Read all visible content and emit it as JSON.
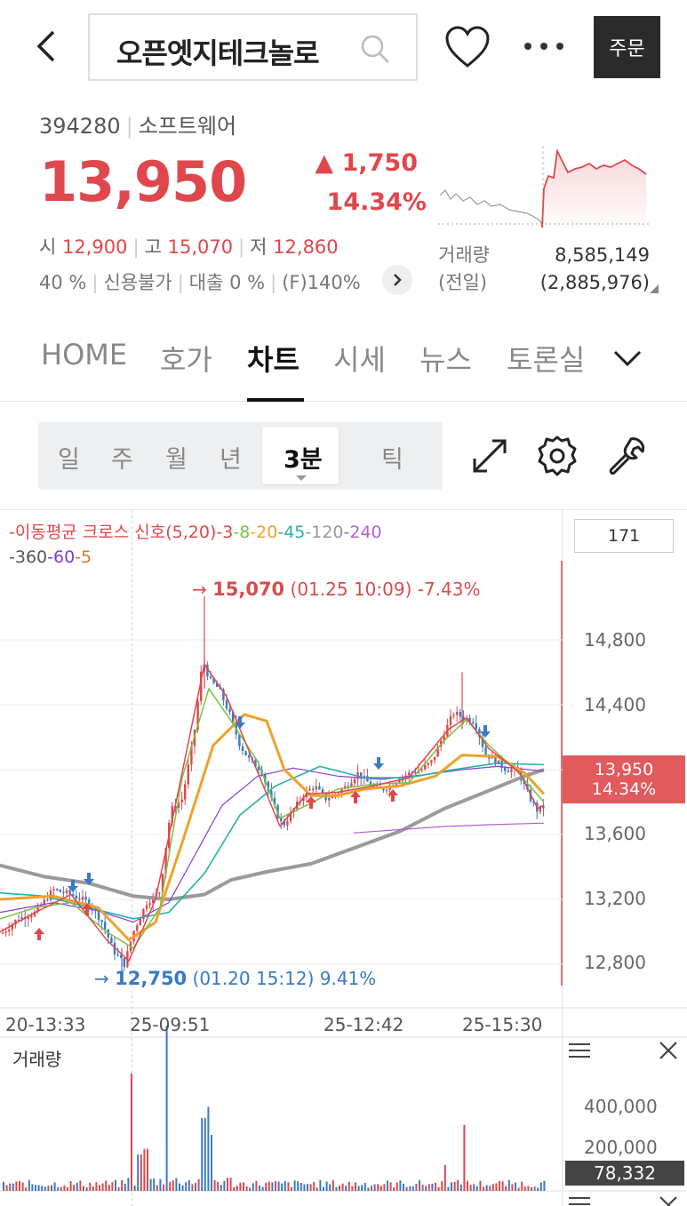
{
  "header": {
    "search_text": "오픈엣지테크놀로",
    "order_label": "주문"
  },
  "quote": {
    "code": "394280",
    "sector": "소프트웨어",
    "price": "13,950",
    "change": "▲ 1,750",
    "change_pct": "14.34%",
    "open_label": "시",
    "open": "12,900",
    "high_label": "고",
    "high": "15,070",
    "low_label": "저",
    "low": "12,860",
    "margin": "40 %",
    "credit": "신용불가",
    "loan": "대출 0 %",
    "f_rate": "(F)140%",
    "volume_label": "거래량",
    "volume": "8,585,149",
    "prev_label": "(전일)",
    "prev_volume": "(2,885,976)"
  },
  "tabs": [
    "HOME",
    "호가",
    "차트",
    "시세",
    "뉴스",
    "토론실"
  ],
  "periods": [
    "일",
    "주",
    "월",
    "년",
    "3분",
    "틱"
  ],
  "chart": {
    "legend_line1": [
      {
        "text": "-이동평균 크로스 신호(5,20)",
        "color": "#e0474c"
      },
      {
        "text": "-3",
        "color": "#e0474c"
      },
      {
        "text": "-8",
        "color": "#7cc144"
      },
      {
        "text": "-20",
        "color": "#f0a12b"
      },
      {
        "text": "-45",
        "color": "#23b3a5"
      },
      {
        "text": "-120",
        "color": "#999999"
      },
      {
        "text": "-240",
        "color": "#b45fd6"
      }
    ],
    "legend_line2": [
      {
        "text": "-360",
        "color": "#555555"
      },
      {
        "text": "-60",
        "color": "#7b3fd1"
      },
      {
        "text": "-5",
        "color": "#e0742c"
      }
    ],
    "count": "171",
    "y_ticks": [
      "14,800",
      "14,400",
      "13,600",
      "13,200",
      "12,800"
    ],
    "current_price": "13,950",
    "current_pct": "14.34%",
    "high_ann": {
      "price": "15,070",
      "detail": "(01.25 10:09) -7.43%"
    },
    "low_ann": {
      "price": "12,750",
      "detail": "(01.20 15:12) 9.41%"
    },
    "time_labels": [
      "20-13:33",
      "25-09:51",
      "25-12:42",
      "25-15:30"
    ],
    "volume_title": "거래량",
    "volume_ticks": [
      "400,000",
      "200,000"
    ],
    "volume_badge": "78,332"
  },
  "colors": {
    "up": "#e0474c",
    "down": "#3a79c6",
    "ma3": "#e0474c",
    "ma8": "#7cc144",
    "ma20": "#f0a12b",
    "ma45": "#23b3a5",
    "ma360": "#9a9a9a",
    "ma240": "#b45fd6"
  }
}
